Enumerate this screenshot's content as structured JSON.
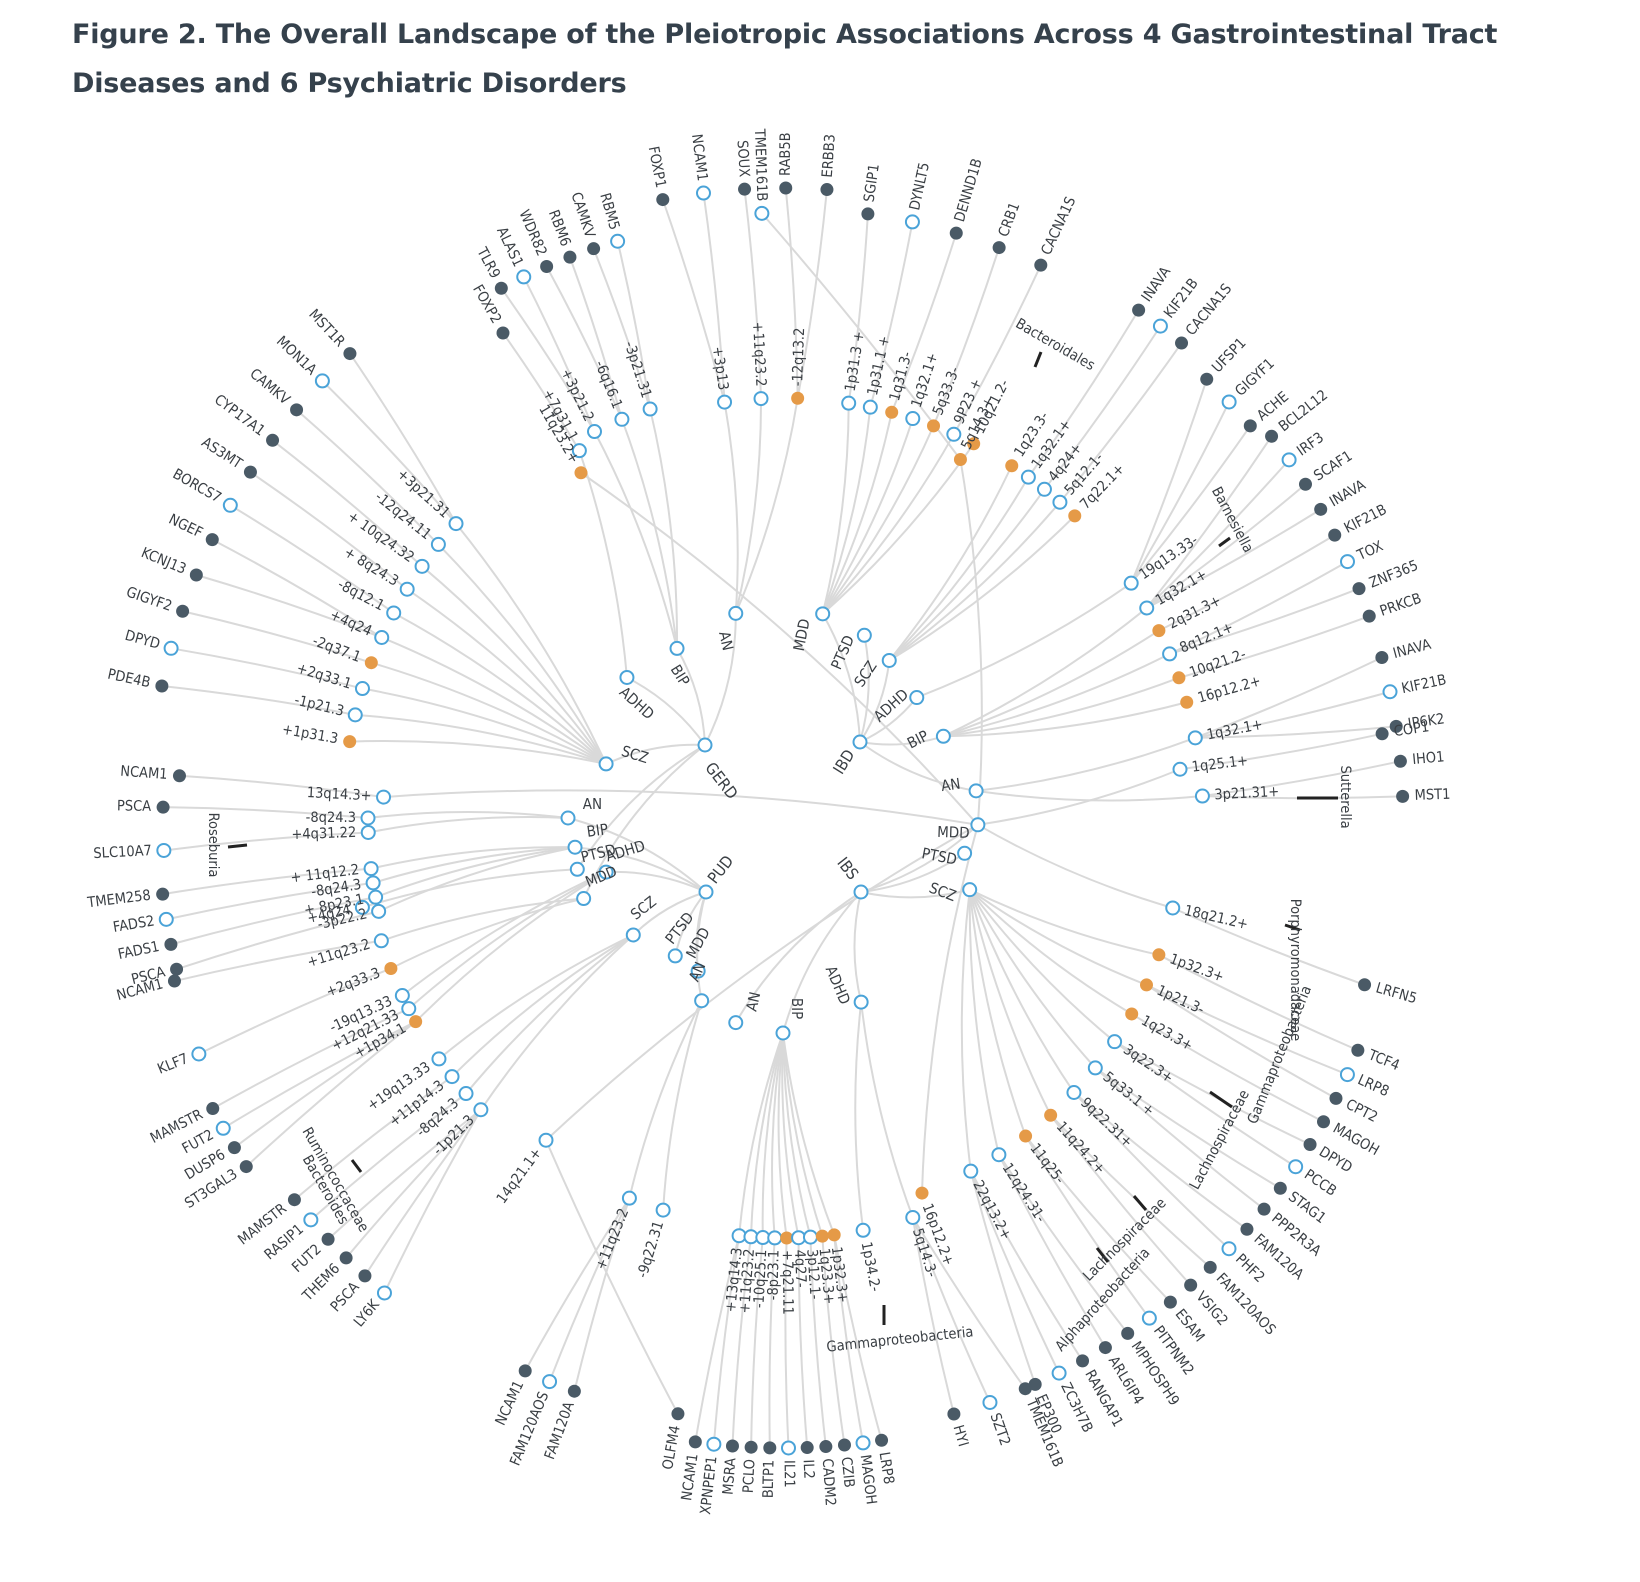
{
  "title": "Figure 2.  The Overall Landscape of the Pleiotropic Associations Across 4 Gastrointestinal Tract Diseases and 6 Psychiatric Disorders",
  "colors": {
    "psychiatric_or_locus_open": "#4aa3d8",
    "gene_filled": "#4a5a66",
    "locus_highlight": "#e59a47",
    "microbiota_locus": "#b3aa98",
    "edge": "#d9d9d9"
  },
  "diagram": {
    "hubs": [
      {
        "id": "GERD",
        "label": "GERD",
        "node": "open"
      },
      {
        "id": "IBD",
        "label": "IBD",
        "node": "open"
      },
      {
        "id": "PUD",
        "label": "PUD",
        "node": "open"
      },
      {
        "id": "IBS",
        "label": "IBS",
        "node": "open"
      }
    ],
    "gerd_branches": [
      {
        "label": "SCZ",
        "loci": [
          "+1p31.3",
          "-1p21.3",
          "+2q33.1",
          "-2q37.1",
          "+4q24",
          "-8q12.1",
          "+ 8q24.3",
          "+ 10q24.32",
          "-12q24.11",
          "+3p21.31"
        ],
        "genes": [
          "PDE4B",
          "DPYD",
          "GIGYF2",
          "KCNJ13",
          "NGEF",
          "BORCS7",
          "AS3MT",
          "CYP17A1",
          "CAMKV",
          "MON1A",
          "MST1R"
        ]
      },
      {
        "label": "ADHD",
        "loci": [
          "+7q31.1"
        ],
        "genes": [
          "FOXP2"
        ]
      },
      {
        "label": "BIP",
        "loci": [
          "+3p21.2",
          "-6q16.1",
          "-3p21.31"
        ],
        "genes": [
          "TLR9",
          "ALAS1",
          "WDR82",
          "RBM6",
          "CAMKV",
          "RBM5"
        ]
      },
      {
        "label": "AN",
        "loci": [
          "+3p13",
          "+11q23.2",
          "-12q13.2"
        ],
        "genes": [
          "FOXP1",
          "NCAM1",
          "SOUX",
          "RAB5B",
          "ERBB3"
        ]
      },
      {
        "label": "PTSD",
        "loci": [
          "+4q24"
        ],
        "genes": []
      },
      {
        "label": "MDD",
        "loci": [
          "+11q23.2",
          "+2q33.3"
        ],
        "genes": [
          "NCAM1",
          "KLF7"
        ]
      }
    ],
    "ibd_branches": [
      {
        "label": "MDD",
        "loci": [
          "1p31.3 +",
          "1p31.1 +",
          "1q31.3-",
          "1q32.1+",
          "5q33.3-",
          "9P23 +",
          "10q21.2-"
        ],
        "genes": [
          "SGIP1",
          "DYNLT5",
          "DENND1B",
          "CRB1",
          "CACNA1S"
        ]
      },
      {
        "label": "PTSD",
        "loci": [],
        "genes": []
      },
      {
        "label": "SCZ",
        "loci": [
          "1q23.3-",
          "1q32.1+",
          "4q24+",
          "5q12.1-",
          "7q22.1+"
        ],
        "genes": [
          "INAVA",
          "KIF21B",
          "CACNA1S"
        ]
      },
      {
        "label": "ADHD",
        "loci": [
          "19q13.33-"
        ],
        "genes": [
          "UFSP1",
          "GIGYF1",
          "ACHE"
        ]
      },
      {
        "label": "BIP",
        "loci": [
          "1q32.1+",
          "2q31.3+",
          "8q12.1+",
          "10q21.2-",
          "16p12.2+"
        ],
        "genes": [
          "BCL2L12",
          "IRF3",
          "SCAF1",
          "INAVA",
          "KIF21B",
          "TOX",
          "ZNF365",
          "PRKCB"
        ]
      },
      {
        "label": "AN",
        "loci": [
          "1q32.1+",
          "3p21.31+"
        ],
        "genes": [
          "INAVA",
          "KIF21B",
          "IP6K2",
          "IHO1",
          "MST1"
        ]
      }
    ],
    "pud_branches": [
      {
        "label": "AN",
        "loci": [
          "-8q24.3",
          "+4q31.22"
        ],
        "genes": [
          "PSCA",
          "SLC10A7"
        ]
      },
      {
        "label": "BIP",
        "loci": [
          "+ 11q12.2",
          "-8q24.3",
          "+ 8p23.1",
          "-3p22.2"
        ],
        "genes": [
          "TMEM258",
          "FADS2",
          "FADS1",
          "PSCA"
        ]
      },
      {
        "label": "ADHD",
        "loci": [
          "-19q13.33",
          "+12q21.33",
          "+1p34.1"
        ],
        "genes": [
          "MAMSTR",
          "FUT2",
          "DUSP6",
          "ST3GAL3"
        ]
      },
      {
        "label": "SCZ",
        "loci": [
          "+19q13.33",
          "+11p14.3",
          "-8q24.3",
          "-1p21.3"
        ],
        "genes": [
          "MAMSTR",
          "RASIP1",
          "FUT2",
          "THEM6",
          "PSCA",
          "LY6K"
        ]
      },
      {
        "label": "PTSD",
        "loci": [],
        "genes": []
      },
      {
        "label": "MDD",
        "loci": [],
        "genes": []
      },
      {
        "label": "AN",
        "loci": [
          "+11q23.2",
          "-9q22.31"
        ],
        "genes": [
          "NCAM1",
          "FAM120AOS",
          "FAM120A"
        ]
      }
    ],
    "ibs_branches": [
      {
        "label": "MDD",
        "loci": [
          "1q25.1+",
          "5q14.3+",
          "11q23.2+",
          "13q14.3+",
          "14q21.1+",
          "16p12.2+",
          "18q21.2+"
        ],
        "genes": [
          "COP1",
          "TMEM161B",
          "NCAM1",
          "OLFM4",
          "LRFN5"
        ]
      },
      {
        "label": "PTSD",
        "loci": [],
        "genes": []
      },
      {
        "label": "SCZ",
        "loci": [
          "1p32.3+",
          "1p21.3-",
          "1q23.3+",
          "3q22.3+",
          "5q33.1 +",
          "9q22.31+",
          "11q24.2+",
          "11q25-",
          "12q24.31-",
          "22q13.2+"
        ],
        "genes": [
          "TCF4",
          "LRP8",
          "CPT2",
          "MAGOH",
          "DPYD",
          "PCCB",
          "STAG1",
          "PPP2R3A",
          "FAM120A",
          "PHF2",
          "FAM120AOS",
          "VSIG2",
          "ESAM",
          "PITPNM2",
          "MPHOSPH9",
          "ARL6IP4",
          "RANGAP1",
          "ZC3H7B",
          "EP300"
        ]
      },
      {
        "label": "ADHD",
        "loci": [
          "5q14.3-",
          "1p34.2-"
        ],
        "genes": [
          "TMEM161B",
          "SZT2",
          "HYI"
        ]
      },
      {
        "label": "BIP",
        "loci": [
          "+13q14.3",
          "+11q23.2",
          "-10q25.1",
          "-8p23.1",
          "+7q21.11",
          "4q27-",
          "3p12.1-",
          "1q23.3+",
          "1p32.3+"
        ],
        "genes": [
          "NCAM1",
          "XPNPEP1",
          "MSRA",
          "PCLO",
          "BLTP1",
          "IL21",
          "IL2",
          "CADM2",
          "CZIB",
          "MAGOH",
          "LRP8"
        ]
      },
      {
        "label": "AN",
        "loci": [],
        "genes": []
      }
    ],
    "microbiota": [
      "Bacteroidales",
      "Barnesiella",
      "Sutterella",
      "Porphyromonadaceae",
      "Gammaproteobacteria",
      "Lachnospiraceae",
      "Lachnospiraceae",
      "Alphaproteobacteria",
      "Gammaproteobacteria",
      "Ruminococcaceae",
      "Bacteroides",
      "Roseburia"
    ]
  }
}
